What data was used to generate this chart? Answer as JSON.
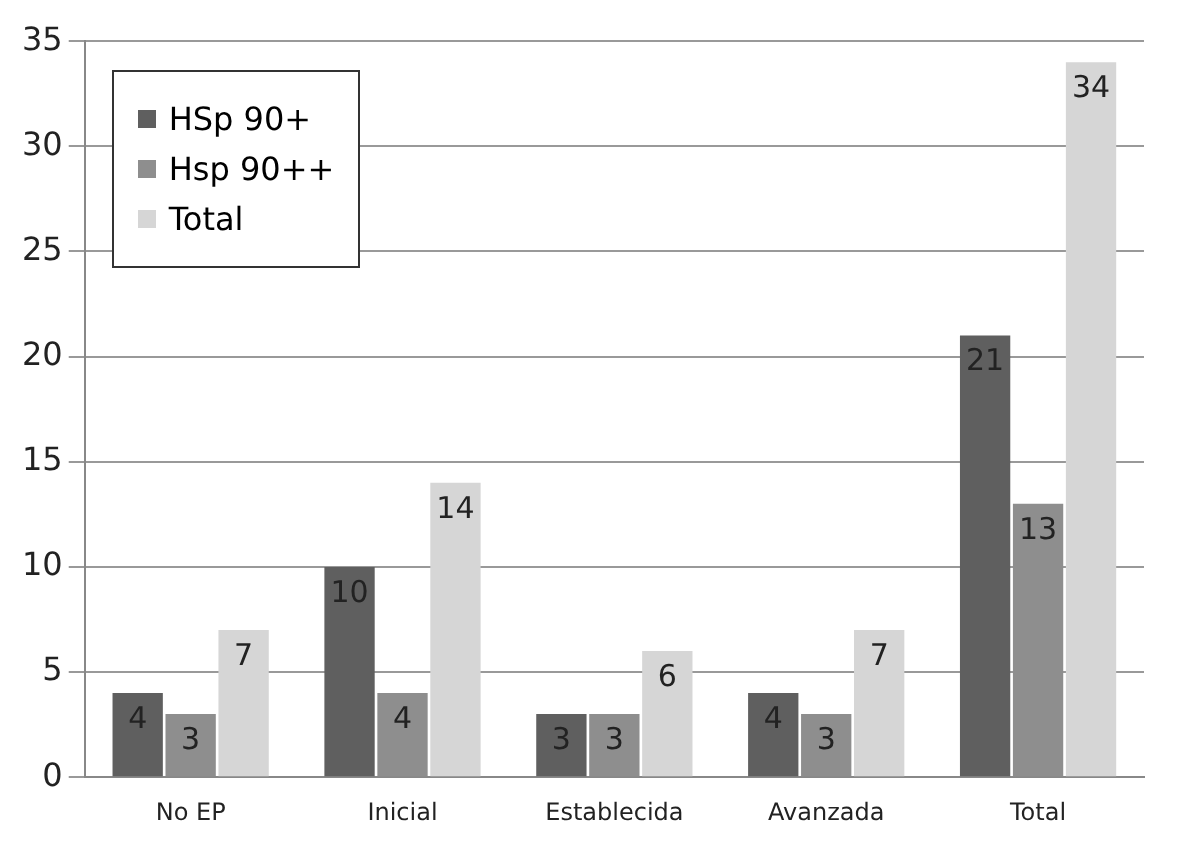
{
  "chart_data": {
    "type": "bar",
    "categories": [
      "No EP",
      "Inicial",
      "Establecida",
      "Avanzada",
      "Total"
    ],
    "series": [
      {
        "name": "HSp 90+",
        "color": "#5f5f5f",
        "values": [
          4,
          10,
          3,
          4,
          21
        ]
      },
      {
        "name": "Hsp 90++",
        "color": "#8e8e8e",
        "values": [
          3,
          4,
          3,
          3,
          13
        ]
      },
      {
        "name": "Total",
        "color": "#d6d6d6",
        "values": [
          7,
          14,
          6,
          7,
          34
        ]
      }
    ],
    "ylim": [
      0,
      35
    ],
    "yticks": [
      0,
      5,
      10,
      15,
      20,
      25,
      30,
      35
    ],
    "grid": "y",
    "legend": "top left",
    "data_labels": true
  }
}
